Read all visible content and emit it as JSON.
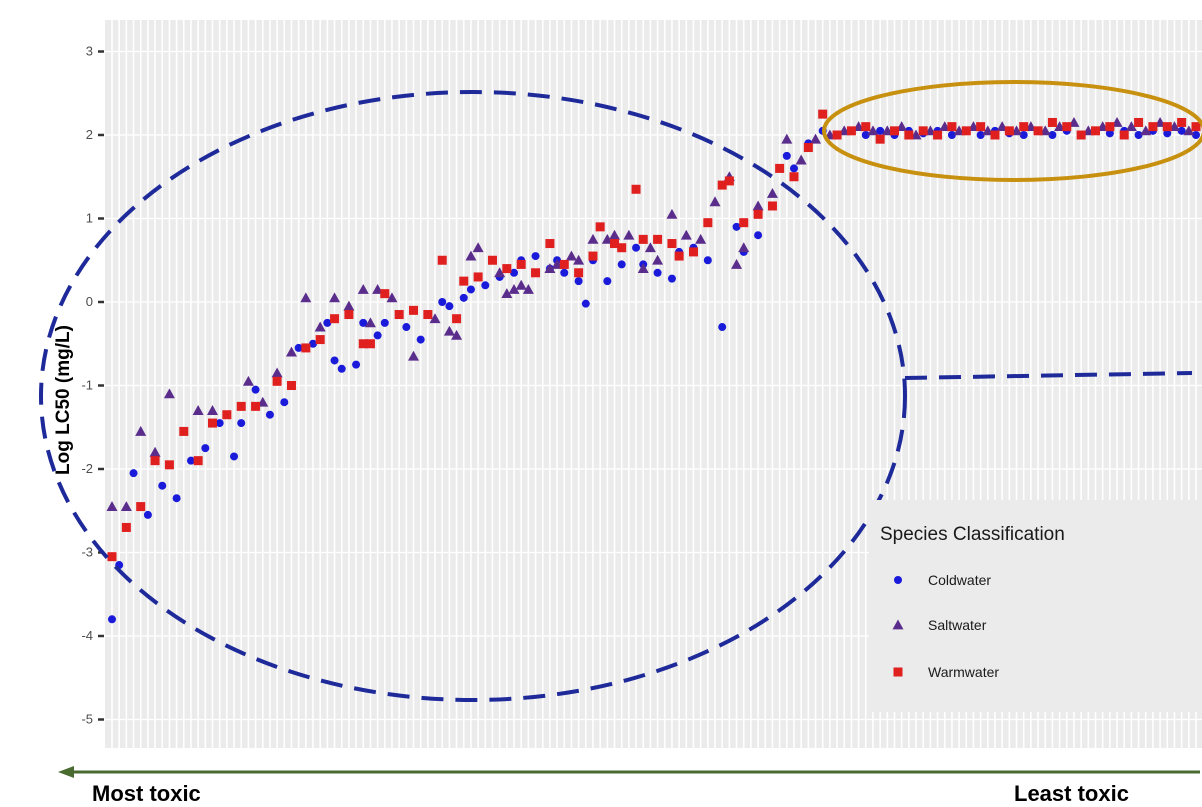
{
  "chart_data": {
    "type": "scatter",
    "title": "",
    "xlabel": "",
    "ylabel": "Log LC50 (mg/L)",
    "ylim": [
      -5.4,
      3.3
    ],
    "yticks": [
      3,
      2,
      1,
      0,
      -1,
      -2,
      -3,
      -4,
      -5
    ],
    "grid": true,
    "legend": {
      "title": "Species Classification",
      "placement": "bottom-right"
    },
    "series": [
      {
        "name": "Coldwater",
        "marker": "circle",
        "color": "#1a1adb",
        "points": [
          [
            1,
            -3.8
          ],
          [
            2,
            -3.15
          ],
          [
            4,
            -2.05
          ],
          [
            6,
            -2.55
          ],
          [
            8,
            -2.2
          ],
          [
            10,
            -2.35
          ],
          [
            12,
            -1.9
          ],
          [
            14,
            -1.75
          ],
          [
            16,
            -1.45
          ],
          [
            18,
            -1.85
          ],
          [
            19,
            -1.45
          ],
          [
            21,
            -1.05
          ],
          [
            23,
            -1.35
          ],
          [
            25,
            -1.2
          ],
          [
            27,
            -0.55
          ],
          [
            29,
            -0.5
          ],
          [
            31,
            -0.25
          ],
          [
            32,
            -0.7
          ],
          [
            33,
            -0.8
          ],
          [
            35,
            -0.75
          ],
          [
            36,
            -0.25
          ],
          [
            38,
            -0.4
          ],
          [
            39,
            -0.25
          ],
          [
            41,
            -0.15
          ],
          [
            42,
            -0.3
          ],
          [
            44,
            -0.45
          ],
          [
            45,
            -0.15
          ],
          [
            47,
            0.0
          ],
          [
            48,
            -0.05
          ],
          [
            50,
            0.05
          ],
          [
            51,
            0.15
          ],
          [
            53,
            0.2
          ],
          [
            55,
            0.3
          ],
          [
            57,
            0.35
          ],
          [
            58,
            0.5
          ],
          [
            60,
            0.55
          ],
          [
            62,
            0.4
          ],
          [
            63,
            0.5
          ],
          [
            64,
            0.35
          ],
          [
            66,
            0.25
          ],
          [
            67,
            -0.02
          ],
          [
            68,
            0.5
          ],
          [
            70,
            0.25
          ],
          [
            72,
            0.45
          ],
          [
            74,
            0.65
          ],
          [
            75,
            0.45
          ],
          [
            77,
            0.35
          ],
          [
            79,
            0.28
          ],
          [
            80,
            0.6
          ],
          [
            82,
            0.65
          ],
          [
            84,
            0.5
          ],
          [
            86,
            -0.3
          ],
          [
            88,
            0.9
          ],
          [
            89,
            0.6
          ],
          [
            91,
            0.8
          ],
          [
            93,
            1.15
          ],
          [
            95,
            1.75
          ],
          [
            96,
            1.6
          ],
          [
            98,
            1.9
          ],
          [
            100,
            2.05
          ],
          [
            102,
            2.0
          ],
          [
            104,
            2.05
          ],
          [
            106,
            2.0
          ],
          [
            108,
            2.05
          ],
          [
            110,
            2.0
          ],
          [
            112,
            2.05
          ],
          [
            114,
            2.02
          ],
          [
            116,
            2.05
          ],
          [
            118,
            2.0
          ],
          [
            120,
            2.05
          ],
          [
            122,
            2.0
          ],
          [
            124,
            2.05
          ],
          [
            126,
            2.02
          ],
          [
            128,
            2.0
          ],
          [
            130,
            2.05
          ],
          [
            132,
            2.0
          ],
          [
            134,
            2.05
          ],
          [
            136,
            2.0
          ],
          [
            138,
            2.05
          ],
          [
            140,
            2.02
          ],
          [
            142,
            2.05
          ],
          [
            144,
            2.0
          ],
          [
            146,
            2.05
          ],
          [
            148,
            2.02
          ],
          [
            150,
            2.05
          ],
          [
            152,
            2.0
          ]
        ]
      },
      {
        "name": "Saltwater",
        "marker": "triangle",
        "color": "#5a2d8c",
        "points": [
          [
            1,
            -2.45
          ],
          [
            3,
            -2.45
          ],
          [
            5,
            -1.55
          ],
          [
            7,
            -1.8
          ],
          [
            9,
            -1.1
          ],
          [
            13,
            -1.3
          ],
          [
            15,
            -1.3
          ],
          [
            20,
            -0.95
          ],
          [
            22,
            -1.2
          ],
          [
            24,
            -0.85
          ],
          [
            26,
            -0.6
          ],
          [
            28,
            0.05
          ],
          [
            30,
            -0.3
          ],
          [
            32,
            0.05
          ],
          [
            34,
            -0.05
          ],
          [
            36,
            0.15
          ],
          [
            37,
            -0.25
          ],
          [
            38,
            0.15
          ],
          [
            40,
            0.05
          ],
          [
            43,
            -0.65
          ],
          [
            46,
            -0.2
          ],
          [
            48,
            -0.35
          ],
          [
            49,
            -0.4
          ],
          [
            51,
            0.55
          ],
          [
            52,
            0.65
          ],
          [
            55,
            0.35
          ],
          [
            56,
            0.1
          ],
          [
            57,
            0.15
          ],
          [
            58,
            0.2
          ],
          [
            59,
            0.15
          ],
          [
            62,
            0.4
          ],
          [
            63,
            0.45
          ],
          [
            65,
            0.55
          ],
          [
            66,
            0.5
          ],
          [
            68,
            0.75
          ],
          [
            70,
            0.75
          ],
          [
            71,
            0.8
          ],
          [
            73,
            0.8
          ],
          [
            75,
            0.4
          ],
          [
            76,
            0.65
          ],
          [
            77,
            0.5
          ],
          [
            79,
            1.05
          ],
          [
            81,
            0.8
          ],
          [
            83,
            0.75
          ],
          [
            85,
            1.2
          ],
          [
            87,
            1.5
          ],
          [
            88,
            0.45
          ],
          [
            89,
            0.65
          ],
          [
            91,
            1.15
          ],
          [
            93,
            1.3
          ],
          [
            95,
            1.95
          ],
          [
            97,
            1.7
          ],
          [
            99,
            1.95
          ],
          [
            101,
            2.0
          ],
          [
            103,
            2.05
          ],
          [
            105,
            2.1
          ],
          [
            107,
            2.05
          ],
          [
            109,
            2.05
          ],
          [
            111,
            2.1
          ],
          [
            113,
            2.0
          ],
          [
            115,
            2.05
          ],
          [
            117,
            2.1
          ],
          [
            119,
            2.05
          ],
          [
            121,
            2.1
          ],
          [
            123,
            2.05
          ],
          [
            125,
            2.1
          ],
          [
            127,
            2.05
          ],
          [
            129,
            2.1
          ],
          [
            131,
            2.05
          ],
          [
            133,
            2.1
          ],
          [
            135,
            2.15
          ],
          [
            137,
            2.05
          ],
          [
            139,
            2.1
          ],
          [
            141,
            2.15
          ],
          [
            143,
            2.1
          ],
          [
            145,
            2.05
          ],
          [
            147,
            2.15
          ],
          [
            149,
            2.1
          ],
          [
            151,
            2.05
          ]
        ]
      },
      {
        "name": "Warmwater",
        "marker": "square",
        "color": "#e01f1f",
        "points": [
          [
            1,
            -3.05
          ],
          [
            3,
            -2.7
          ],
          [
            5,
            -2.45
          ],
          [
            7,
            -1.9
          ],
          [
            9,
            -1.95
          ],
          [
            11,
            -1.55
          ],
          [
            13,
            -1.9
          ],
          [
            15,
            -1.45
          ],
          [
            17,
            -1.35
          ],
          [
            19,
            -1.25
          ],
          [
            21,
            -1.25
          ],
          [
            24,
            -0.95
          ],
          [
            26,
            -1.0
          ],
          [
            28,
            -0.55
          ],
          [
            30,
            -0.45
          ],
          [
            32,
            -0.2
          ],
          [
            34,
            -0.15
          ],
          [
            36,
            -0.5
          ],
          [
            37,
            -0.5
          ],
          [
            39,
            0.1
          ],
          [
            41,
            -0.15
          ],
          [
            43,
            -0.1
          ],
          [
            45,
            -0.15
          ],
          [
            47,
            0.5
          ],
          [
            49,
            -0.2
          ],
          [
            50,
            0.25
          ],
          [
            52,
            0.3
          ],
          [
            54,
            0.5
          ],
          [
            56,
            0.4
          ],
          [
            58,
            0.45
          ],
          [
            60,
            0.35
          ],
          [
            62,
            0.7
          ],
          [
            64,
            0.45
          ],
          [
            66,
            0.35
          ],
          [
            68,
            0.55
          ],
          [
            69,
            0.9
          ],
          [
            71,
            0.7
          ],
          [
            72,
            0.65
          ],
          [
            74,
            1.35
          ],
          [
            75,
            0.75
          ],
          [
            77,
            0.75
          ],
          [
            79,
            0.7
          ],
          [
            80,
            0.55
          ],
          [
            82,
            0.6
          ],
          [
            84,
            0.95
          ],
          [
            86,
            1.4
          ],
          [
            87,
            1.45
          ],
          [
            89,
            0.95
          ],
          [
            91,
            1.05
          ],
          [
            93,
            1.15
          ],
          [
            94,
            1.6
          ],
          [
            96,
            1.5
          ],
          [
            98,
            1.85
          ],
          [
            100,
            2.25
          ],
          [
            102,
            2.0
          ],
          [
            104,
            2.05
          ],
          [
            106,
            2.1
          ],
          [
            108,
            1.95
          ],
          [
            110,
            2.05
          ],
          [
            112,
            2.0
          ],
          [
            114,
            2.05
          ],
          [
            116,
            2.0
          ],
          [
            118,
            2.1
          ],
          [
            120,
            2.05
          ],
          [
            122,
            2.1
          ],
          [
            124,
            2.0
          ],
          [
            126,
            2.05
          ],
          [
            128,
            2.1
          ],
          [
            130,
            2.05
          ],
          [
            132,
            2.15
          ],
          [
            134,
            2.1
          ],
          [
            136,
            2.0
          ],
          [
            138,
            2.05
          ],
          [
            140,
            2.1
          ],
          [
            142,
            2.0
          ],
          [
            144,
            2.15
          ],
          [
            146,
            2.1
          ],
          [
            148,
            2.1
          ],
          [
            150,
            2.15
          ],
          [
            152,
            2.1
          ]
        ]
      }
    ],
    "annotations": [
      {
        "name": "most-toxic-arrow",
        "direction": "left",
        "color": "#4a6b2f"
      },
      {
        "name": "large-blue-dashed-ellipse",
        "color": "#1f2a9a",
        "style": "dashed"
      },
      {
        "name": "gold-ellipse",
        "color": "#c8900f",
        "style": "solid"
      },
      {
        "name": "blue-dashed-connector",
        "color": "#1f2a9a",
        "style": "dashed"
      }
    ]
  },
  "labels": {
    "most_toxic": "Most toxic",
    "least_toxic": "Least toxic"
  }
}
